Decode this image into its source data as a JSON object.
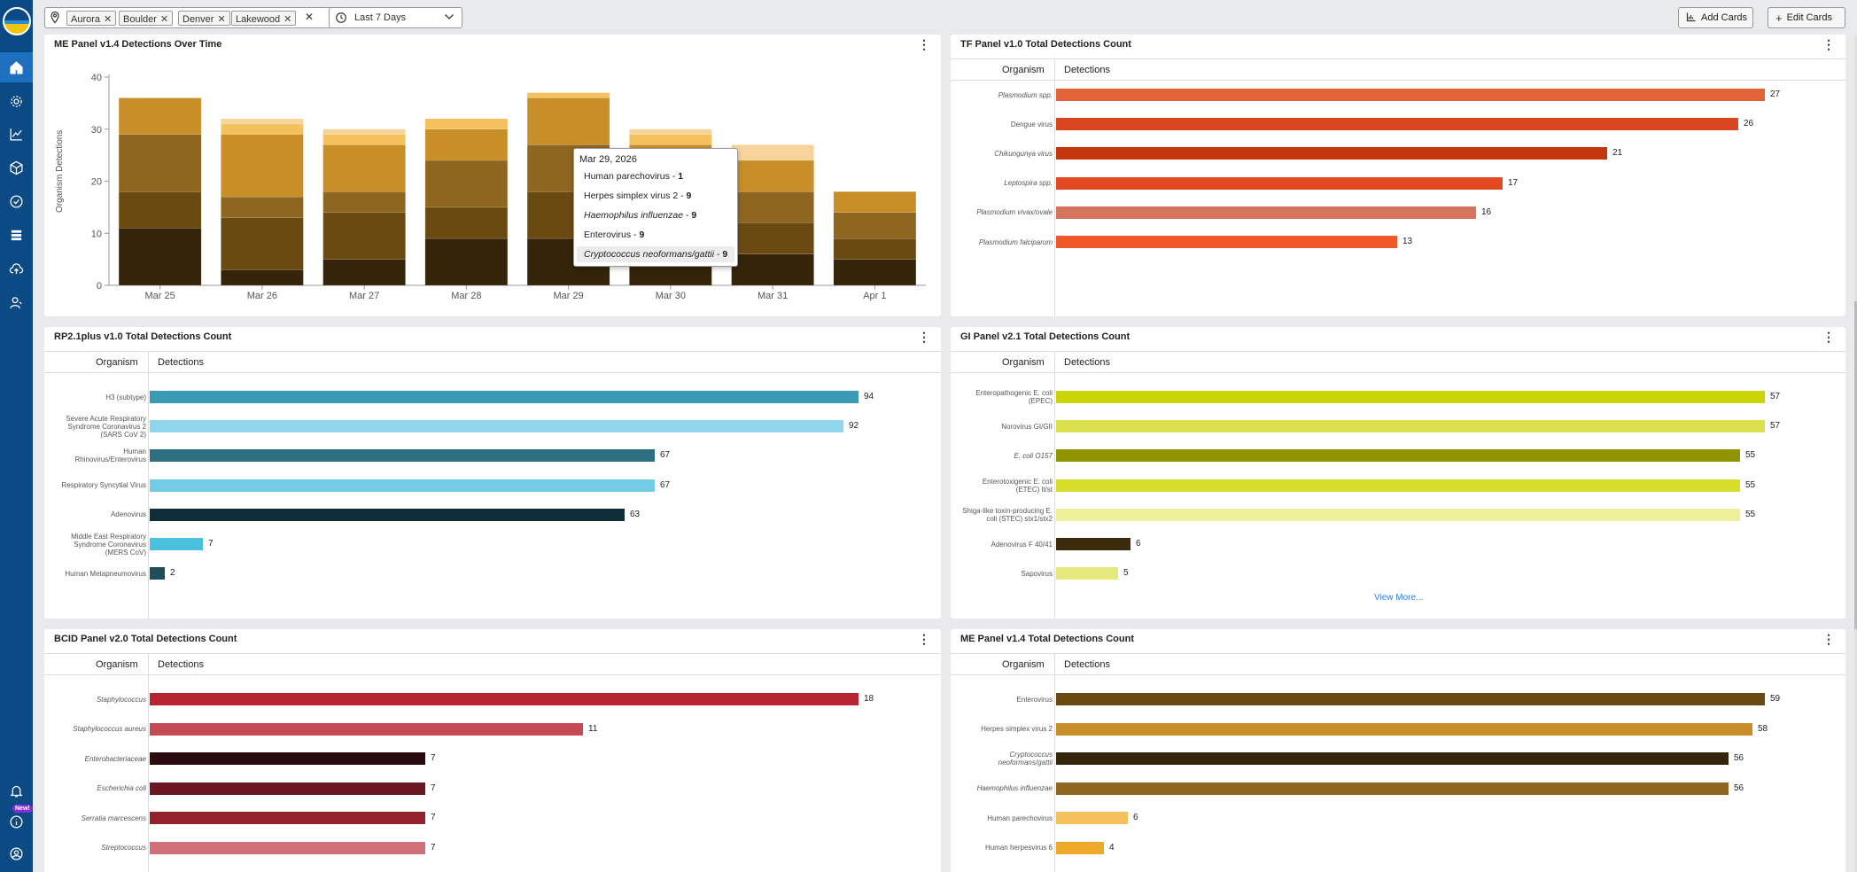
{
  "topbar": {
    "filter_chips": [
      "Aurora",
      "Boulder",
      "Denver",
      "Lakewood"
    ],
    "date_range": "Last 7 Days",
    "add_cards": "Add Cards",
    "edit_cards": "Edit Cards"
  },
  "sidebar": {
    "new_badge": "New!",
    "icons": [
      "home-icon",
      "settings-gear-icon",
      "analytics-chart-icon",
      "package-box-icon",
      "check-circle-icon",
      "storage-stack-icon",
      "cloud-upload-icon",
      "users-icon",
      "bell-icon",
      "info-icon",
      "user-account-icon"
    ]
  },
  "cards": {
    "me_time": {
      "title": "ME Panel v1.4 Detections Over Time",
      "ylabel": "Organism Detections"
    },
    "tf": {
      "title": "TF Panel v1.0 Total Detections Count",
      "col_org": "Organism",
      "col_det": "Detections",
      "rows": [
        {
          "name": "Plasmodium spp.",
          "value": "27",
          "color": "#e2623a",
          "italic": true
        },
        {
          "name": "Dengue virus",
          "value": "26",
          "color": "#d9461f",
          "italic": false
        },
        {
          "name": "Chikungunya virus",
          "value": "21",
          "color": "#c4360b",
          "italic": true
        },
        {
          "name": "Leptospira spp.",
          "value": "17",
          "color": "#e04a1e",
          "italic": true
        },
        {
          "name": "Plasmodium vivax/ovale",
          "value": "16",
          "color": "#d4755c",
          "italic": true
        },
        {
          "name": "Plasmodium falciparum",
          "value": "13",
          "color": "#f0582a",
          "italic": true
        }
      ]
    },
    "rp": {
      "title": "RP2.1plus v1.0 Total Detections Count",
      "col_org": "Organism",
      "col_det": "Detections",
      "rows": [
        {
          "name": "H3 (subtype)",
          "value": "94",
          "color": "#3a9ab5",
          "italic": false
        },
        {
          "name": "Severe Acute Respiratory Syndrome Coronavirus 2 (SARS CoV 2)",
          "value": "92",
          "color": "#8fd6ea",
          "italic": false
        },
        {
          "name": "Human Rhinovirus/Enterovirus",
          "value": "67",
          "color": "#2d6f80",
          "italic": false
        },
        {
          "name": "Respiratory Syncytial Virus",
          "value": "67",
          "color": "#74cde6",
          "italic": false
        },
        {
          "name": "Adenovirus",
          "value": "63",
          "color": "#0f2f38",
          "italic": false
        },
        {
          "name": "Middle East Respiratory Syndrome Coronavirus (MERS CoV)",
          "value": "7",
          "color": "#4cc0e0",
          "italic": false
        },
        {
          "name": "Human Metapneumovirus",
          "value": "2",
          "color": "#1f4e5a",
          "italic": false
        }
      ]
    },
    "gi": {
      "title": "GI Panel v2.1 Total Detections Count",
      "col_org": "Organism",
      "col_det": "Detections",
      "rows": [
        {
          "name": "Enteropathogenic E. coli (EPEC)",
          "value": "57",
          "color": "#cbd600",
          "italic": false
        },
        {
          "name": "Norovirus GI/GII",
          "value": "57",
          "color": "#dbe04e",
          "italic": false
        },
        {
          "name": "E. coli O157",
          "value": "55",
          "color": "#8f9400",
          "italic": true
        },
        {
          "name": "Enterotoxigenic E. coli (ETEC) lt/st",
          "value": "55",
          "color": "#d6de2a",
          "italic": false
        },
        {
          "name": "Shiga-like toxin-producing E. coli (STEC) stx1/stx2",
          "value": "55",
          "color": "#eef09a",
          "italic": false
        },
        {
          "name": "Adenovirus F 40/41",
          "value": "6",
          "color": "#3b2a0c",
          "italic": false
        },
        {
          "name": "Sapovirus",
          "value": "5",
          "color": "#e6ea7c",
          "italic": false
        }
      ],
      "view_more": "View More..."
    },
    "bcid": {
      "title": "BCID Panel v2.0 Total Detections Count",
      "col_org": "Organism",
      "col_det": "Detections",
      "rows": [
        {
          "name": "Staphylococcus",
          "value": "18",
          "color": "#b62430",
          "italic": true
        },
        {
          "name": "Staphylococcus aureus",
          "value": "11",
          "color": "#c64a56",
          "italic": true
        },
        {
          "name": "Enterobacteriaceae",
          "value": "7",
          "color": "#2a0a0d",
          "italic": true
        },
        {
          "name": "Escherichia coli",
          "value": "7",
          "color": "#6b1620",
          "italic": true
        },
        {
          "name": "Serratia marcescens",
          "value": "7",
          "color": "#92222c",
          "italic": true
        },
        {
          "name": "Streptococcus",
          "value": "7",
          "color": "#d2707a",
          "italic": true
        }
      ]
    },
    "me_total": {
      "title": "ME Panel v1.4 Total Detections Count",
      "col_org": "Organism",
      "col_det": "Detections",
      "rows": [
        {
          "name": "Enterovirus",
          "value": "59",
          "color": "#6b4a12",
          "italic": false
        },
        {
          "name": "Herpes simplex virus 2",
          "value": "58",
          "color": "#c88e28",
          "italic": false
        },
        {
          "name": "Cryptococcus neoformans/gattii",
          "value": "56",
          "color": "#33240a",
          "italic": true
        },
        {
          "name": "Haemophilus influenzae",
          "value": "56",
          "color": "#8e6620",
          "italic": true
        },
        {
          "name": "Human parechovirus",
          "value": "6",
          "color": "#f4c15c",
          "italic": false
        },
        {
          "name": "Human herpesvirus 6",
          "value": "4",
          "color": "#f0aa2a",
          "italic": false
        }
      ]
    }
  },
  "tooltip": {
    "date": "Mar 29, 2026",
    "items": [
      {
        "name": "Human parechovirus",
        "value": "1",
        "italic": false
      },
      {
        "name": "Herpes simplex virus 2",
        "value": "9",
        "italic": false
      },
      {
        "name": "Haemophilus influenzae",
        "value": "9",
        "italic": true
      },
      {
        "name": "Enterovirus",
        "value": "9",
        "italic": false
      },
      {
        "name": "Cryptococcus neoformans/gattii",
        "value": "9",
        "italic": true
      }
    ]
  },
  "chart_data": {
    "type": "bar",
    "stacked": true,
    "title": "ME Panel v1.4 Detections Over Time",
    "ylabel": "Organism Detections",
    "xlabel": "",
    "ylim": [
      0,
      40
    ],
    "yticks": [
      0,
      10,
      20,
      30,
      40
    ],
    "categories": [
      "Mar 25",
      "Mar 26",
      "Mar 27",
      "Mar 28",
      "Mar 29",
      "Mar 30",
      "Mar 31",
      "Apr 1"
    ],
    "series": [
      {
        "color": "#33240a",
        "values": [
          11,
          3,
          5,
          9,
          9,
          9,
          6,
          5
        ]
      },
      {
        "color": "#6b4a12",
        "values": [
          7,
          10,
          9,
          6,
          9,
          7,
          6,
          4
        ]
      },
      {
        "color": "#8e6620",
        "values": [
          11,
          4,
          4,
          9,
          9,
          4,
          6,
          5
        ]
      },
      {
        "color": "#c88e28",
        "values": [
          7,
          12,
          9,
          6,
          9,
          7,
          6,
          4
        ]
      },
      {
        "color": "#f4c15c",
        "values": [
          0,
          2,
          2,
          2,
          1,
          2,
          0,
          0
        ]
      },
      {
        "color": "#f7d59a",
        "values": [
          0,
          1,
          1,
          0,
          0,
          1,
          3,
          0
        ]
      }
    ]
  }
}
